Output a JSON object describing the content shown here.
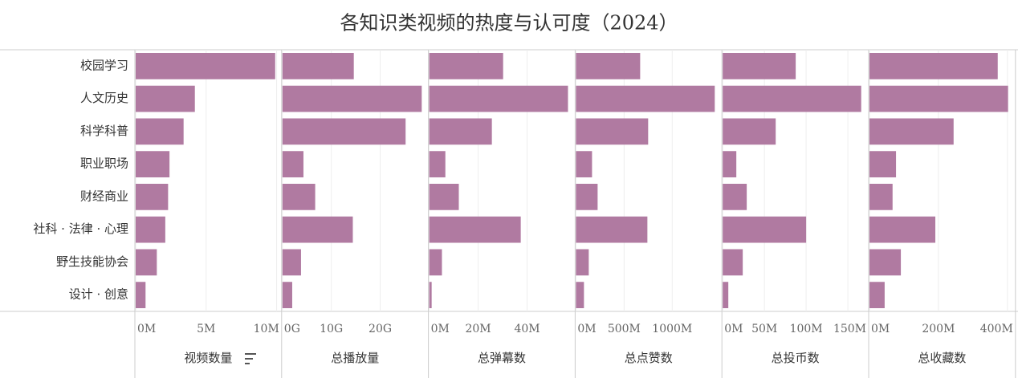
{
  "chart_data": {
    "type": "bar",
    "title": "各知识类视频的热度与认可度（2024）",
    "categories": [
      "校园学习",
      "人文历史",
      "科学科普",
      "职业职场",
      "财经商业",
      "社科 · 法律 · 心理",
      "野生技能协会",
      "设计 · 创意"
    ],
    "color": "#b07aa1",
    "grid": true,
    "panels": [
      {
        "name": "视频数量",
        "values": [
          9.9,
          4.2,
          3.4,
          2.4,
          2.3,
          2.1,
          1.5,
          0.7
        ],
        "xlim": [
          0,
          10.3
        ],
        "xticks": [
          {
            "value": 0,
            "label": "0M"
          },
          {
            "value": 5,
            "label": "5M"
          },
          {
            "value": 10,
            "label": "10M"
          }
        ]
      },
      {
        "name": "总播放量",
        "values": [
          14.6,
          28.5,
          25.2,
          4.3,
          6.7,
          14.4,
          3.8,
          2.0
        ],
        "xlim": [
          0,
          29.7
        ],
        "xticks": [
          {
            "value": 0,
            "label": "0G"
          },
          {
            "value": 10,
            "label": "10G"
          },
          {
            "value": 20,
            "label": "20G"
          }
        ]
      },
      {
        "name": "总弹幕数",
        "values": [
          30.2,
          56.7,
          25.6,
          6.6,
          12.1,
          37.4,
          5.2,
          1.0
        ],
        "xlim": [
          0,
          59.3
        ],
        "xticks": [
          {
            "value": 0,
            "label": "0M"
          },
          {
            "value": 20,
            "label": "20M"
          },
          {
            "value": 40,
            "label": "40M"
          }
        ]
      },
      {
        "name": "总点赞数",
        "values": [
          667,
          1442,
          750,
          167,
          225,
          742,
          133,
          83
        ],
        "xlim": [
          0,
          1508
        ],
        "xticks": [
          {
            "value": 0,
            "label": "0M"
          },
          {
            "value": 500,
            "label": "500M"
          },
          {
            "value": 1000,
            "label": "1000M"
          }
        ]
      },
      {
        "name": "总投币数",
        "values": [
          87.5,
          166,
          63.5,
          16.3,
          28.8,
          100,
          24,
          6.7
        ],
        "xlim": [
          0,
          174
        ],
        "xticks": [
          {
            "value": 0,
            "label": "0M"
          },
          {
            "value": 50,
            "label": "50M"
          },
          {
            "value": 100,
            "label": "100M"
          },
          {
            "value": 150,
            "label": "150M"
          }
        ]
      },
      {
        "name": "总收藏数",
        "values": [
          372,
          402,
          244,
          77,
          67,
          191,
          91,
          44
        ],
        "xlim": [
          0,
          421
        ],
        "xticks": [
          {
            "value": 0,
            "label": "0M"
          },
          {
            "value": 200,
            "label": "200M"
          },
          {
            "value": 400,
            "label": "400M"
          }
        ]
      }
    ]
  }
}
